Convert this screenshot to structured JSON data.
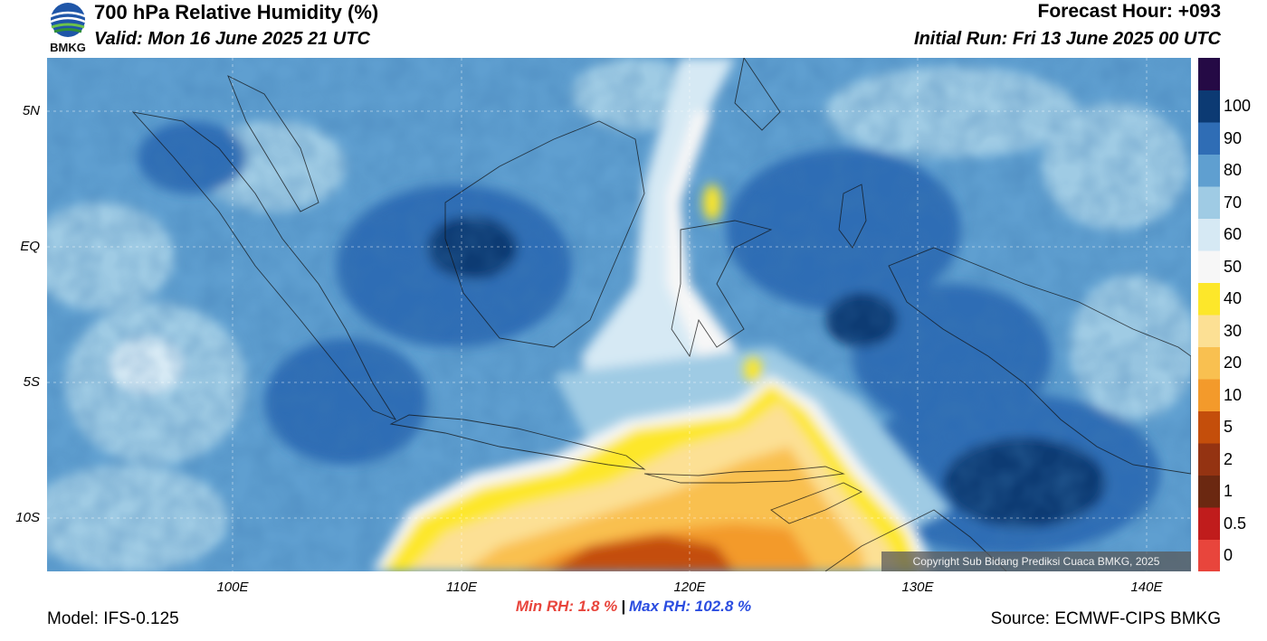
{
  "header": {
    "title": "700 hPa Relative Humidity (%)",
    "valid": "Valid: Mon 16 June 2025 21 UTC",
    "forecast_hour": "Forecast Hour: +093",
    "initial_run": "Initial Run: Fri 13 June 2025 00 UTC",
    "logo_text": "BMKG"
  },
  "axes": {
    "lat_labels": [
      "5N",
      "EQ",
      "5S",
      "10S"
    ],
    "lon_labels": [
      "100E",
      "110E",
      "120E",
      "130E",
      "140E"
    ]
  },
  "colorbar": {
    "colors": [
      "#e8453c",
      "#c01c1c",
      "#6b2811",
      "#943312",
      "#c44e0b",
      "#f39a2b",
      "#f9c050",
      "#fce094",
      "#fde72a",
      "#f7f7f7",
      "#d6e9f4",
      "#9fcbe4",
      "#5f9fd0",
      "#2f6db5",
      "#0c3a73",
      "#250a45"
    ],
    "labels": [
      "0",
      "0.5",
      "1",
      "2",
      "5",
      "10",
      "20",
      "30",
      "40",
      "50",
      "60",
      "70",
      "80",
      "90",
      "100"
    ]
  },
  "stats": {
    "min": "Min RH:   1.8 %",
    "max": "Max RH: 102.8 %"
  },
  "footer": {
    "model": "Model: IFS-0.125",
    "source": "Source: ECMWF-CIPS BMKG",
    "copyright": "Copyright Sub Bidang Prediksi Cuaca BMKG, 2025"
  }
}
